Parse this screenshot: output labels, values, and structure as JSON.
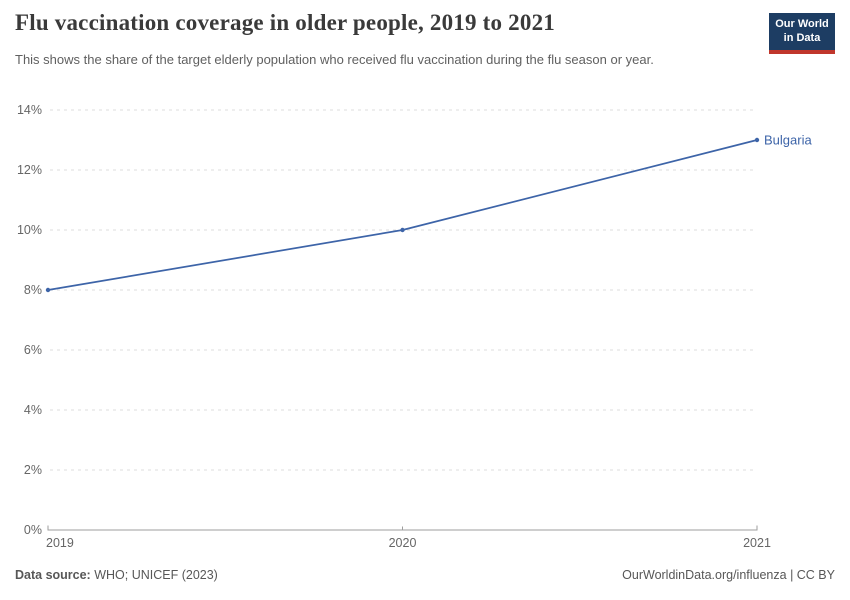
{
  "header": {
    "title": "Flu vaccination coverage in older people, 2019 to 2021",
    "subtitle": "This shows the share of the target elderly population who received flu vaccination during the flu season or year."
  },
  "logo": {
    "line1": "Our World",
    "line2": "in Data",
    "bg_color": "#1d3d63",
    "accent_color": "#c0362c"
  },
  "chart_data": {
    "type": "line",
    "title": "Flu vaccination coverage in older people, 2019 to 2021",
    "x": [
      2019,
      2020,
      2021
    ],
    "x_labels": [
      "2019",
      "2020",
      "2021"
    ],
    "series": [
      {
        "name": "Bulgaria",
        "values": [
          8,
          10,
          13
        ],
        "color": "#3d64a8"
      }
    ],
    "entity_label": "Bulgaria",
    "ylim": [
      0,
      14
    ],
    "yticks": [
      0,
      2,
      4,
      6,
      8,
      10,
      12,
      14
    ],
    "ytick_labels": [
      "0%",
      "2%",
      "4%",
      "6%",
      "8%",
      "10%",
      "12%",
      "14%"
    ],
    "xlabel": "",
    "ylabel": "",
    "grid": "horizontal-dashed",
    "grid_color": "#dcdcdc",
    "axis_color": "#9e9e9e",
    "legend_position": "end-of-line-label"
  },
  "footer": {
    "source_label": "Data source:",
    "source_value": "WHO; UNICEF (2023)",
    "link": "OurWorldinData.org/influenza | CC BY"
  }
}
